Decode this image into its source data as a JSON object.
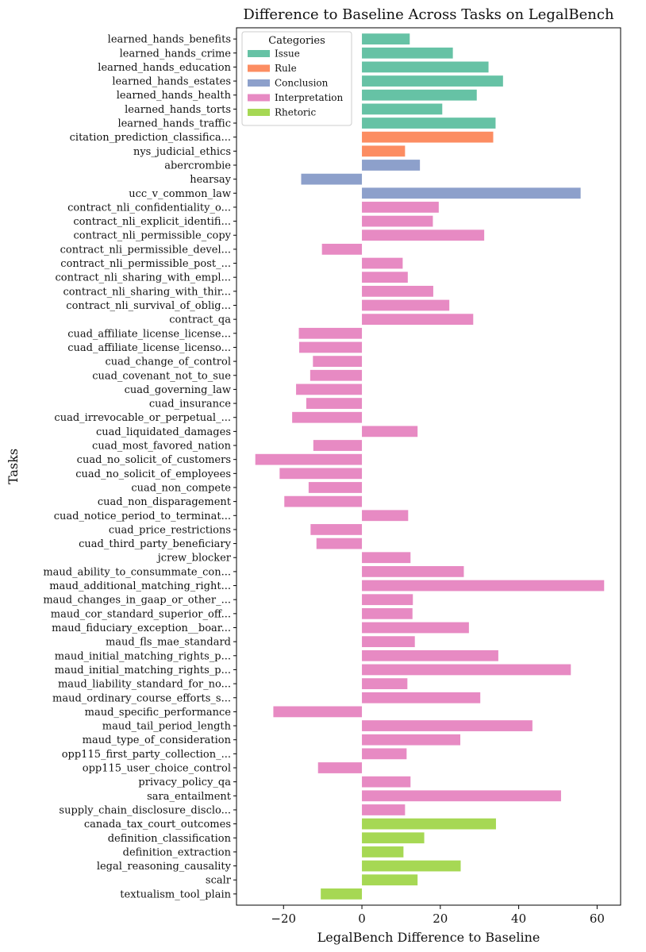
{
  "chart_data": {
    "type": "bar",
    "orientation": "horizontal",
    "title": "Difference to Baseline Across Tasks on LegalBench",
    "xlabel": "LegalBench Difference to Baseline",
    "ylabel": "Tasks",
    "xlim": [
      -32,
      66
    ],
    "xticks": [
      -20,
      0,
      20,
      40,
      60
    ],
    "xtick_labels": [
      "−20",
      "0",
      "20",
      "40",
      "60"
    ],
    "grid": false,
    "legend": {
      "title": "Categories",
      "position": "top-left",
      "entries": [
        {
          "name": "Issue",
          "color": "#66c2a5"
        },
        {
          "name": "Rule",
          "color": "#fc8d62"
        },
        {
          "name": "Conclusion",
          "color": "#8da0cb"
        },
        {
          "name": "Interpretation",
          "color": "#e78ac3"
        },
        {
          "name": "Rhetoric",
          "color": "#a6d854"
        }
      ]
    },
    "bars": [
      {
        "label": "learned_hands_benefits",
        "value": 12.2,
        "category": "Issue"
      },
      {
        "label": "learned_hands_crime",
        "value": 23.2,
        "category": "Issue"
      },
      {
        "label": "learned_hands_education",
        "value": 32.3,
        "category": "Issue"
      },
      {
        "label": "learned_hands_estates",
        "value": 36.0,
        "category": "Issue"
      },
      {
        "label": "learned_hands_health",
        "value": 29.3,
        "category": "Issue"
      },
      {
        "label": "learned_hands_torts",
        "value": 20.5,
        "category": "Issue"
      },
      {
        "label": "learned_hands_traffic",
        "value": 34.1,
        "category": "Issue"
      },
      {
        "label": "citation_prediction_classifica...",
        "value": 33.5,
        "category": "Rule"
      },
      {
        "label": "nys_judicial_ethics",
        "value": 11.0,
        "category": "Rule"
      },
      {
        "label": "abercrombie",
        "value": 14.8,
        "category": "Conclusion"
      },
      {
        "label": "hearsay",
        "value": -15.5,
        "category": "Conclusion"
      },
      {
        "label": "ucc_v_common_law",
        "value": 55.8,
        "category": "Conclusion"
      },
      {
        "label": "contract_nli_confidentiality_o...",
        "value": 19.6,
        "category": "Interpretation"
      },
      {
        "label": "contract_nli_explicit_identifi...",
        "value": 18.1,
        "category": "Interpretation"
      },
      {
        "label": "contract_nli_permissible_copy",
        "value": 31.2,
        "category": "Interpretation"
      },
      {
        "label": "contract_nli_permissible_devel...",
        "value": -10.2,
        "category": "Interpretation"
      },
      {
        "label": "contract_nli_permissible_post_...",
        "value": 10.4,
        "category": "Interpretation"
      },
      {
        "label": "contract_nli_sharing_with_empl...",
        "value": 11.7,
        "category": "Interpretation"
      },
      {
        "label": "contract_nli_sharing_with_thir...",
        "value": 18.2,
        "category": "Interpretation"
      },
      {
        "label": "contract_nli_survival_of_oblig...",
        "value": 22.3,
        "category": "Interpretation"
      },
      {
        "label": "contract_qa",
        "value": 28.4,
        "category": "Interpretation"
      },
      {
        "label": "cuad_affiliate_license_license...",
        "value": -16.1,
        "category": "Interpretation"
      },
      {
        "label": "cuad_affiliate_license_licenso...",
        "value": -16.0,
        "category": "Interpretation"
      },
      {
        "label": "cuad_change_of_control",
        "value": -12.5,
        "category": "Interpretation"
      },
      {
        "label": "cuad_covenant_not_to_sue",
        "value": -13.2,
        "category": "Interpretation"
      },
      {
        "label": "cuad_governing_law",
        "value": -16.8,
        "category": "Interpretation"
      },
      {
        "label": "cuad_insurance",
        "value": -14.2,
        "category": "Interpretation"
      },
      {
        "label": "cuad_irrevocable_or_perpetual_...",
        "value": -17.8,
        "category": "Interpretation"
      },
      {
        "label": "cuad_liquidated_damages",
        "value": 14.2,
        "category": "Interpretation"
      },
      {
        "label": "cuad_most_favored_nation",
        "value": -12.4,
        "category": "Interpretation"
      },
      {
        "label": "cuad_no_solicit_of_customers",
        "value": -27.2,
        "category": "Interpretation"
      },
      {
        "label": "cuad_no_solicit_of_employees",
        "value": -21.0,
        "category": "Interpretation"
      },
      {
        "label": "cuad_non_compete",
        "value": -13.6,
        "category": "Interpretation"
      },
      {
        "label": "cuad_non_disparagement",
        "value": -19.8,
        "category": "Interpretation"
      },
      {
        "label": "cuad_notice_period_to_terminat...",
        "value": 11.8,
        "category": "Interpretation"
      },
      {
        "label": "cuad_price_restrictions",
        "value": -13.1,
        "category": "Interpretation"
      },
      {
        "label": "cuad_third_party_beneficiary",
        "value": -11.6,
        "category": "Interpretation"
      },
      {
        "label": "jcrew_blocker",
        "value": 12.4,
        "category": "Interpretation"
      },
      {
        "label": "maud_ability_to_consummate_con...",
        "value": 26.0,
        "category": "Interpretation"
      },
      {
        "label": "maud_additional_matching_right...",
        "value": 61.8,
        "category": "Interpretation"
      },
      {
        "label": "maud_changes_in_gaap_or_other_...",
        "value": 13.0,
        "category": "Interpretation"
      },
      {
        "label": "maud_cor_standard_superior_off...",
        "value": 12.9,
        "category": "Interpretation"
      },
      {
        "label": "maud_fiduciary_exception__boar...",
        "value": 27.3,
        "category": "Interpretation"
      },
      {
        "label": "maud_fls_mae_standard",
        "value": 13.5,
        "category": "Interpretation"
      },
      {
        "label": "maud_initial_matching_rights_p...",
        "value": 34.8,
        "category": "Interpretation"
      },
      {
        "label": "maud_initial_matching_rights_p...",
        "value": 53.3,
        "category": "Interpretation"
      },
      {
        "label": "maud_liability_standard_for_no...",
        "value": 11.6,
        "category": "Interpretation"
      },
      {
        "label": "maud_ordinary_course_efforts_s...",
        "value": 30.2,
        "category": "Interpretation"
      },
      {
        "label": "maud_specific_performance",
        "value": -22.6,
        "category": "Interpretation"
      },
      {
        "label": "maud_tail_period_length",
        "value": 43.5,
        "category": "Interpretation"
      },
      {
        "label": "maud_type_of_consideration",
        "value": 25.1,
        "category": "Interpretation"
      },
      {
        "label": "opp115_first_party_collection_...",
        "value": 11.4,
        "category": "Interpretation"
      },
      {
        "label": "opp115_user_choice_control",
        "value": -11.2,
        "category": "Interpretation"
      },
      {
        "label": "privacy_policy_qa",
        "value": 12.4,
        "category": "Interpretation"
      },
      {
        "label": "sara_entailment",
        "value": 50.8,
        "category": "Interpretation"
      },
      {
        "label": "supply_chain_disclosure_disclo...",
        "value": 11.0,
        "category": "Interpretation"
      },
      {
        "label": "canada_tax_court_outcomes",
        "value": 34.2,
        "category": "Rhetoric"
      },
      {
        "label": "definition_classification",
        "value": 15.9,
        "category": "Rhetoric"
      },
      {
        "label": "definition_extraction",
        "value": 10.6,
        "category": "Rhetoric"
      },
      {
        "label": "legal_reasoning_causality",
        "value": 25.2,
        "category": "Rhetoric"
      },
      {
        "label": "scalr",
        "value": 14.2,
        "category": "Rhetoric"
      },
      {
        "label": "textualism_tool_plain",
        "value": -10.5,
        "category": "Rhetoric"
      }
    ]
  }
}
